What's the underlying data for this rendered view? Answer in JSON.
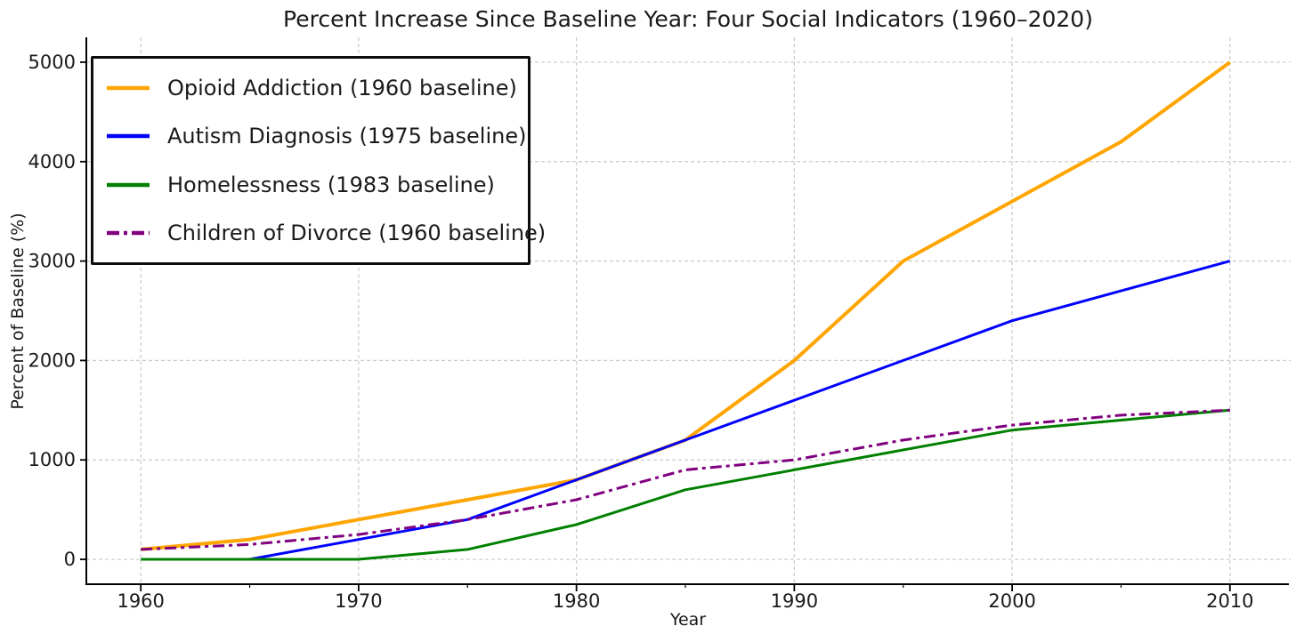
{
  "figure": {
    "title": "Percent Increase Since Baseline Year: Four Social Indicators (1960–2020)"
  },
  "chart_data": {
    "type": "line",
    "title": "Percent Increase Since Baseline Year: Four Social Indicators (1960–2020)",
    "xlabel": "Year",
    "ylabel": "Percent of Baseline (%)",
    "xlim": [
      1957.5,
      2012.5
    ],
    "ylim": [
      -250,
      5250
    ],
    "x_ticks": [
      1960,
      1970,
      1980,
      1990,
      2000,
      2010
    ],
    "x_minor_ticks": [
      1965,
      1975,
      1985,
      1995,
      2005
    ],
    "y_ticks": [
      0,
      1000,
      2000,
      3000,
      4000,
      5000
    ],
    "grid": {
      "on": true,
      "color": "#cacaca",
      "dash": "4 3"
    },
    "axis_color": "#000000",
    "tick_label_color": "#1a1a1a",
    "legend": {
      "position": "upper-left",
      "border_color": "#0d0d0d",
      "background": "#ffffff"
    },
    "series": [
      {
        "name": "opioid-addiction",
        "label": "Opioid Addiction (1960 baseline)",
        "color": "#FFA500",
        "style": "solid",
        "line_width": 4,
        "x": [
          1960,
          1965,
          1970,
          1975,
          1980,
          1985,
          1990,
          1995,
          2000,
          2005,
          2010
        ],
        "y": [
          100,
          200,
          400,
          600,
          800,
          1200,
          2000,
          3000,
          3600,
          4200,
          5000
        ]
      },
      {
        "name": "autism-diagnosis",
        "label": "Autism Diagnosis (1975 baseline)",
        "color": "#0000FF",
        "style": "solid",
        "line_width": 3,
        "x": [
          1965,
          1970,
          1975,
          1980,
          1985,
          1990,
          1995,
          2000,
          2005,
          2010
        ],
        "y": [
          0,
          200,
          400,
          800,
          1200,
          1600,
          2000,
          2400,
          2700,
          3000
        ]
      },
      {
        "name": "homelessness",
        "label": "Homelessness (1983 baseline)",
        "color": "#008000",
        "style": "solid",
        "line_width": 3,
        "x": [
          1960,
          1965,
          1970,
          1975,
          1980,
          1985,
          1990,
          1995,
          2000,
          2005,
          2010
        ],
        "y": [
          0,
          0,
          0,
          100,
          350,
          700,
          900,
          1100,
          1300,
          1400,
          1500
        ]
      },
      {
        "name": "children-of-divorce",
        "label": "Children of Divorce (1960 baseline)",
        "color": "#800080",
        "style": "dashdot",
        "line_width": 3,
        "x": [
          1960,
          1965,
          1970,
          1975,
          1980,
          1985,
          1990,
          1995,
          2000,
          2005,
          2010
        ],
        "y": [
          100,
          150,
          250,
          400,
          600,
          900,
          1000,
          1200,
          1350,
          1450,
          1500
        ]
      }
    ]
  }
}
